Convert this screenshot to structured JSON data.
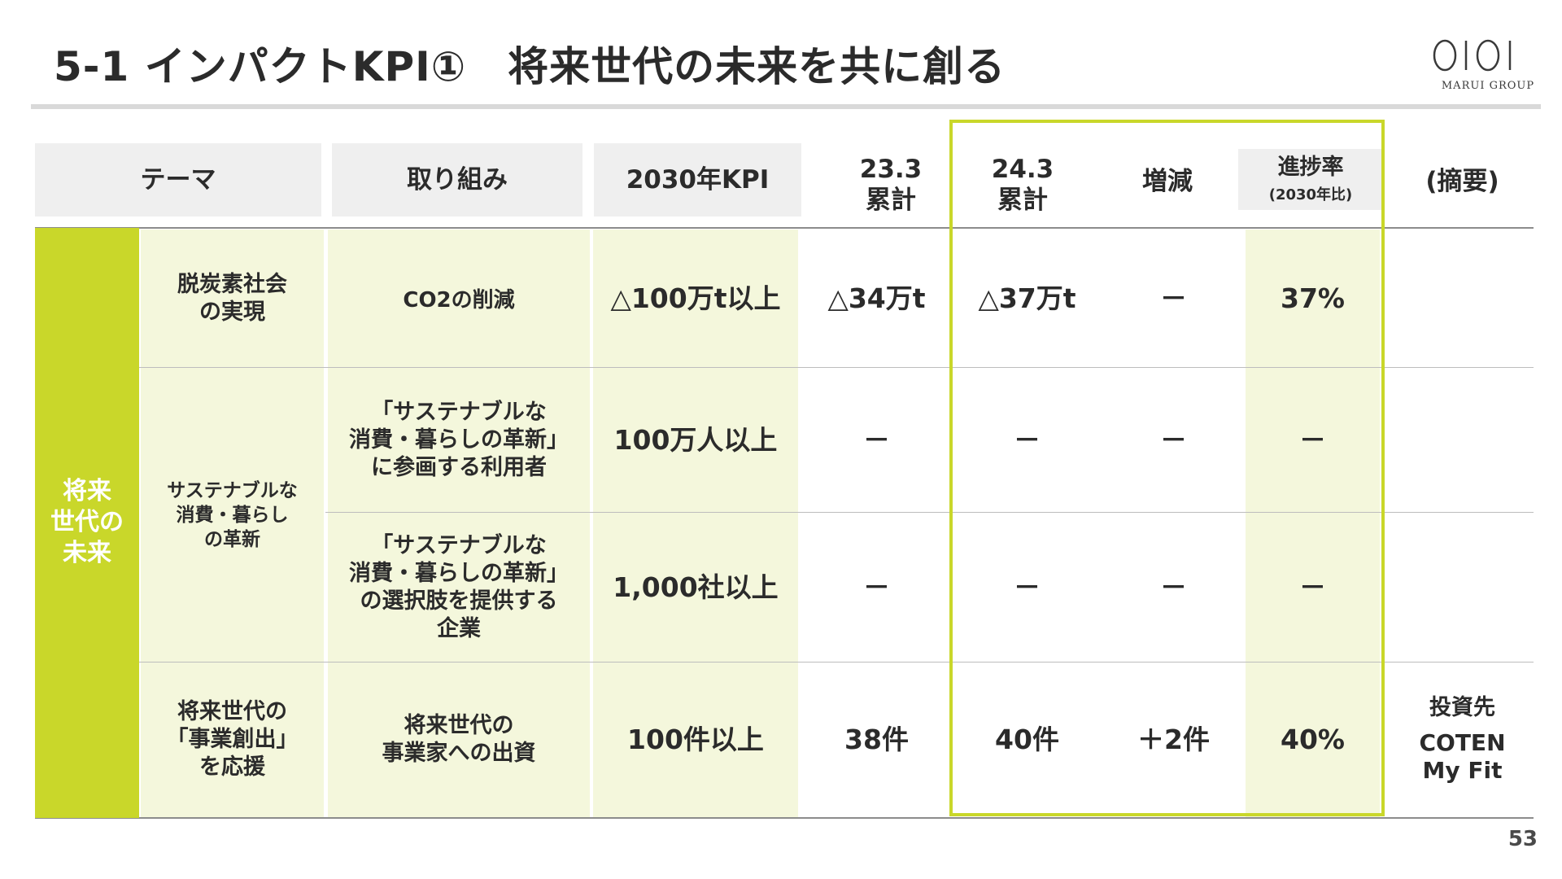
{
  "header": {
    "title": "5-1 インパクトKPI①　将来世代の未来を共に創る",
    "logo_text": "MARUI GROUP"
  },
  "columns": {
    "theme": "テーマ",
    "initiative": "取り組み",
    "kpi2030": "2030年KPI",
    "cum_23_3": "23.3\n累計",
    "cum_24_3": "24.3\n累計",
    "change": "増減",
    "progress": "進捗率",
    "progress_sub": "(2030年比)",
    "summary": "(摘要)"
  },
  "category": "将来\n世代の\n未来",
  "themes": {
    "t1": "脱炭素社会\nの実現",
    "t2": "サステナブルな\n消費・暮らし\nの革新",
    "t3": "将来世代の\n「事業創出」\nを応援"
  },
  "rows": [
    {
      "initiative": "CO2の削減",
      "kpi": "△100万t以上",
      "cum_23_3": "△34万t",
      "cum_24_3": "△37万t",
      "change": "－",
      "progress": "37%",
      "summary": ""
    },
    {
      "initiative": "「サステナブルな\n消費・暮らしの革新」\nに参画する利用者",
      "kpi": "100万人以上",
      "cum_23_3": "－",
      "cum_24_3": "－",
      "change": "－",
      "progress": "－",
      "summary": ""
    },
    {
      "initiative": "「サステナブルな\n消費・暮らしの革新」\nの選択肢を提供する\n企業",
      "kpi": "1,000社以上",
      "cum_23_3": "－",
      "cum_24_3": "－",
      "change": "－",
      "progress": "－",
      "summary": ""
    },
    {
      "initiative": "将来世代の\n事業家への出資",
      "kpi": "100件以上",
      "cum_23_3": "38件",
      "cum_24_3": "40件",
      "change": "＋2件",
      "progress": "40%",
      "summary_label": "投資先",
      "summary": "COTEN\nMy Fit"
    }
  ],
  "page_number": "53",
  "colors": {
    "accent_green": "#c9d72a",
    "light_green_fill": "#f4f7dc",
    "header_gray": "#efefef"
  }
}
